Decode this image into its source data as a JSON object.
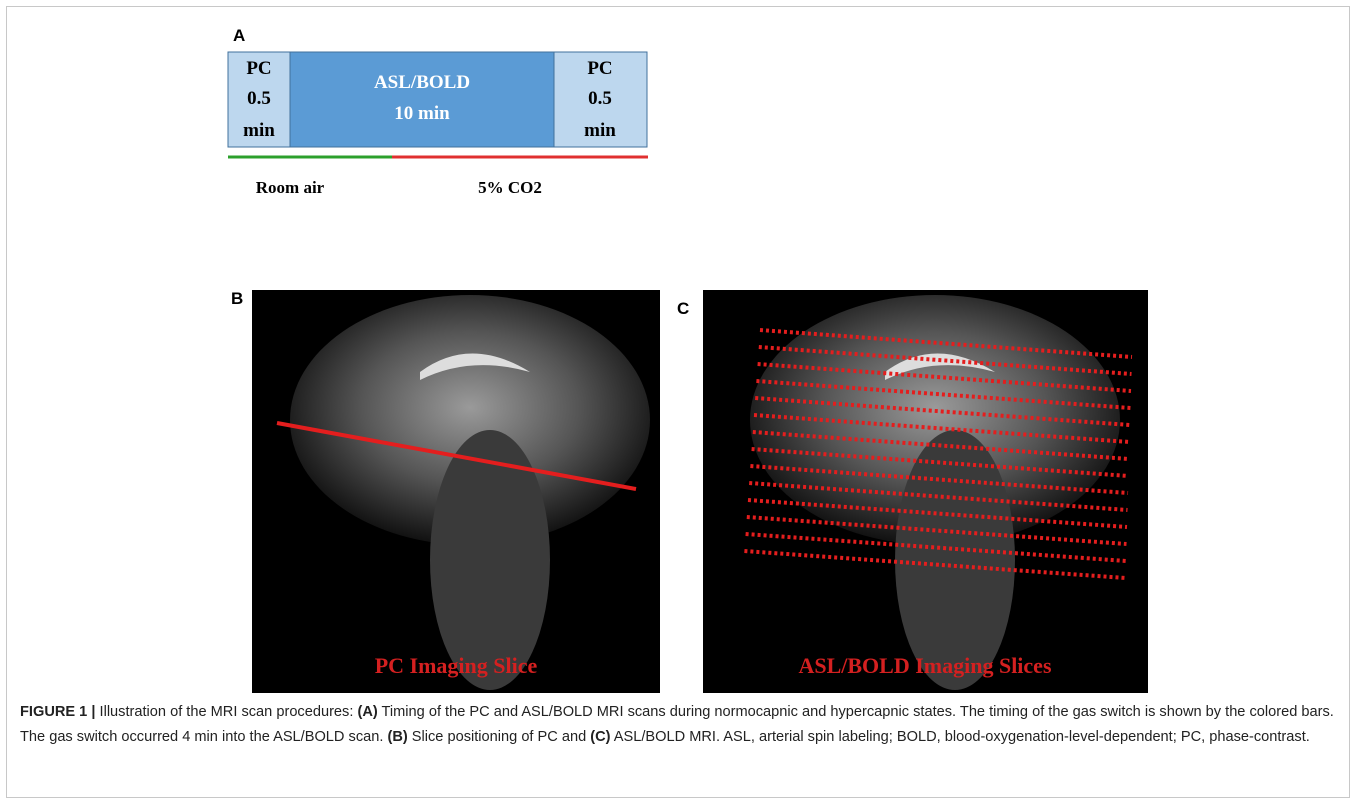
{
  "panel_a": {
    "label": "A",
    "boxes": [
      {
        "lines": [
          "PC",
          "0.5",
          "min"
        ]
      },
      {
        "lines": [
          "ASL/BOLD",
          "10 min"
        ]
      },
      {
        "lines": [
          "PC",
          "0.5",
          "min"
        ]
      }
    ],
    "gas": [
      "Room air",
      "5% CO2"
    ]
  },
  "panel_b": {
    "label": "B",
    "overlay": "PC Imaging Slice"
  },
  "panel_c": {
    "label": "C",
    "overlay": "ASL/BOLD Imaging Slices"
  },
  "caption": [
    "FIGURE 1 |",
    "Illustration of the MRI scan procedures:",
    "(A)",
    "Timing of the PC and ASL/BOLD MRI scans during normocapnic and hypercapnic states. The timing of the gas switch is shown by the colored bars. The gas switch occurred 4 min into the ASL/BOLD scan.",
    "(B)",
    "Slice positioning of PC and",
    "(C)",
    "ASL/BOLD MRI. ASL, arterial spin labeling; BOLD, blood-oxygenation-level-dependent; PC, phase-contrast."
  ]
}
